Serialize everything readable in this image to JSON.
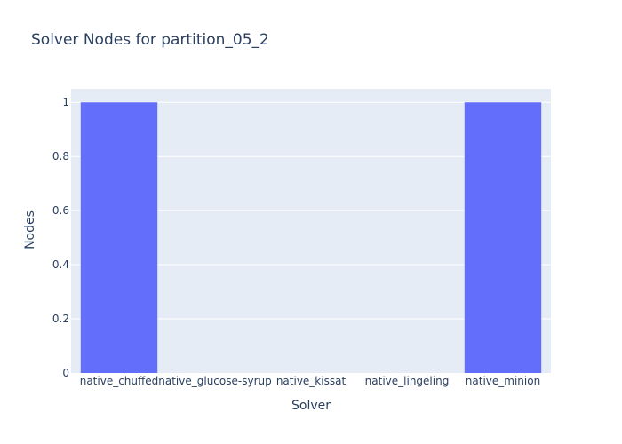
{
  "chart_data": {
    "type": "bar",
    "title": "Solver Nodes for partition_05_2",
    "xlabel": "Solver",
    "ylabel": "Nodes",
    "categories": [
      "native_chuffed",
      "native_glucose-syrup",
      "native_kissat",
      "native_lingeling",
      "native_minion"
    ],
    "values": [
      1,
      0,
      0,
      0,
      1
    ],
    "ylim": [
      0,
      1.05
    ],
    "yticks": [
      "0",
      "0.2",
      "0.4",
      "0.6",
      "0.8",
      "1"
    ],
    "grid": true,
    "legend": "none",
    "colors": {
      "bar": "#636efa",
      "plot_bg": "#e5ecf6",
      "grid": "#ffffff",
      "text": "#2a3f5f"
    }
  }
}
